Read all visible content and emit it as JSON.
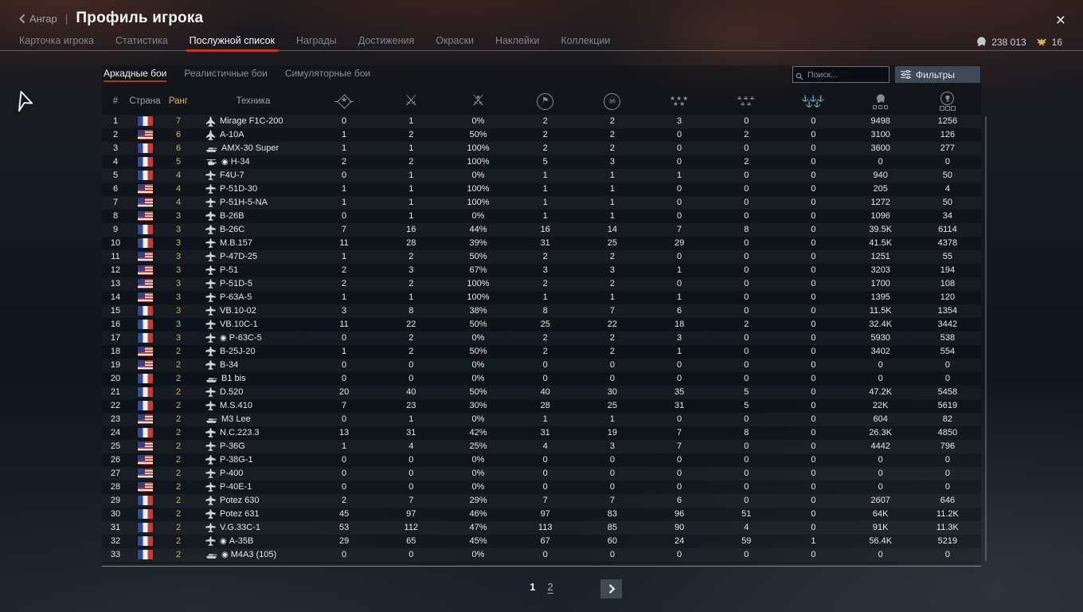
{
  "header": {
    "back_label": "Ангар",
    "separator": "|",
    "title": "Профиль игрока",
    "close_label": "×"
  },
  "currency": {
    "silver_lions": "238 013",
    "golden_eagles": "16",
    "silver_icon": "silver-lion-icon",
    "gold_icon": "golden-eagle-icon"
  },
  "tabs": [
    {
      "label": "Карточка игрока",
      "active": false
    },
    {
      "label": "Статистика",
      "active": false
    },
    {
      "label": "Послужной список",
      "active": true
    },
    {
      "label": "Награды",
      "active": false
    },
    {
      "label": "Достижения",
      "active": false
    },
    {
      "label": "Окраски",
      "active": false
    },
    {
      "label": "Наклейки",
      "active": false
    },
    {
      "label": "Коллекции",
      "active": false
    }
  ],
  "subtabs": [
    {
      "label": "Аркадные бои",
      "active": true
    },
    {
      "label": "Реалистичные бои",
      "active": false
    },
    {
      "label": "Симуляторные бои",
      "active": false
    }
  ],
  "search": {
    "placeholder": "Поиск...",
    "icon": "search-icon"
  },
  "filters": {
    "label": "Фильтры",
    "icon": "filters-icon"
  },
  "colors": {
    "accent_red": "#bf3a1f",
    "rank_gold": "#d7b455",
    "silver": "#c3c9ce",
    "eagle_gold": "#d9b44e"
  },
  "table": {
    "text_headers": [
      "#",
      "Страна",
      "Ранг",
      "Техника"
    ],
    "icon_headers": [
      "wins-icon",
      "missions-icon",
      "winrate-icon",
      "sorties-icon",
      "deaths-icon",
      "air-targets-icon",
      "ground-targets-icon",
      "naval-targets-icon",
      "silver-lions-icon",
      "research-points-icon"
    ],
    "premium_marker": "◉",
    "rows": [
      {
        "n": "1",
        "country": "fr",
        "rank": "7",
        "type": "jet",
        "premium": false,
        "name": "Mirage F1C-200",
        "stats": [
          "0",
          "1",
          "0%",
          "2",
          "2",
          "3",
          "0",
          "0",
          "9498",
          "1256"
        ]
      },
      {
        "n": "2",
        "country": "us",
        "rank": "6",
        "type": "jet",
        "premium": false,
        "name": "A-10A",
        "stats": [
          "1",
          "2",
          "50%",
          "2",
          "2",
          "0",
          "2",
          "0",
          "3100",
          "126"
        ]
      },
      {
        "n": "3",
        "country": "fr",
        "rank": "6",
        "type": "tank",
        "premium": false,
        "name": "AMX-30 Super",
        "stats": [
          "1",
          "1",
          "100%",
          "2",
          "2",
          "0",
          "0",
          "0",
          "3600",
          "277"
        ]
      },
      {
        "n": "4",
        "country": "fr",
        "rank": "5",
        "type": "heli",
        "premium": true,
        "name": "H-34",
        "stats": [
          "2",
          "2",
          "100%",
          "5",
          "3",
          "0",
          "2",
          "0",
          "0",
          "0"
        ]
      },
      {
        "n": "5",
        "country": "fr",
        "rank": "4",
        "type": "plane",
        "premium": false,
        "name": "F4U-7",
        "stats": [
          "0",
          "1",
          "0%",
          "1",
          "1",
          "1",
          "0",
          "0",
          "940",
          "50"
        ]
      },
      {
        "n": "6",
        "country": "us",
        "rank": "4",
        "type": "plane",
        "premium": false,
        "name": "P-51D-30",
        "stats": [
          "1",
          "1",
          "100%",
          "1",
          "1",
          "0",
          "0",
          "0",
          "205",
          "4"
        ]
      },
      {
        "n": "7",
        "country": "us",
        "rank": "4",
        "type": "plane",
        "premium": false,
        "name": "P-51H-5-NA",
        "stats": [
          "1",
          "1",
          "100%",
          "1",
          "1",
          "0",
          "0",
          "0",
          "1272",
          "50"
        ]
      },
      {
        "n": "8",
        "country": "us",
        "rank": "3",
        "type": "bomber",
        "premium": false,
        "name": "B-26B",
        "stats": [
          "0",
          "1",
          "0%",
          "1",
          "1",
          "0",
          "0",
          "0",
          "1096",
          "34"
        ]
      },
      {
        "n": "9",
        "country": "fr",
        "rank": "3",
        "type": "bomber",
        "premium": false,
        "name": "B-26C",
        "stats": [
          "7",
          "16",
          "44%",
          "16",
          "14",
          "7",
          "8",
          "0",
          "39.5K",
          "6114"
        ]
      },
      {
        "n": "10",
        "country": "fr",
        "rank": "3",
        "type": "plane",
        "premium": false,
        "name": "M.B.157",
        "stats": [
          "11",
          "28",
          "39%",
          "31",
          "25",
          "29",
          "0",
          "0",
          "41.5K",
          "4378"
        ]
      },
      {
        "n": "11",
        "country": "us",
        "rank": "3",
        "type": "plane",
        "premium": false,
        "name": "P-47D-25",
        "stats": [
          "1",
          "2",
          "50%",
          "2",
          "2",
          "0",
          "0",
          "0",
          "1251",
          "55"
        ]
      },
      {
        "n": "12",
        "country": "us",
        "rank": "3",
        "type": "plane",
        "premium": false,
        "name": "P-51",
        "stats": [
          "2",
          "3",
          "67%",
          "3",
          "3",
          "1",
          "0",
          "0",
          "3203",
          "194"
        ]
      },
      {
        "n": "13",
        "country": "us",
        "rank": "3",
        "type": "plane",
        "premium": false,
        "name": "P-51D-5",
        "stats": [
          "2",
          "2",
          "100%",
          "2",
          "2",
          "0",
          "0",
          "0",
          "1700",
          "108"
        ]
      },
      {
        "n": "14",
        "country": "us",
        "rank": "3",
        "type": "plane",
        "premium": false,
        "name": "P-63A-5",
        "stats": [
          "1",
          "1",
          "100%",
          "1",
          "1",
          "1",
          "0",
          "0",
          "1395",
          "120"
        ]
      },
      {
        "n": "15",
        "country": "fr",
        "rank": "3",
        "type": "plane",
        "premium": false,
        "name": "VB.10-02",
        "stats": [
          "3",
          "8",
          "38%",
          "8",
          "7",
          "6",
          "0",
          "0",
          "11.5K",
          "1354"
        ]
      },
      {
        "n": "16",
        "country": "fr",
        "rank": "3",
        "type": "plane",
        "premium": false,
        "name": "VB.10C-1",
        "stats": [
          "11",
          "22",
          "50%",
          "25",
          "22",
          "18",
          "2",
          "0",
          "32.4K",
          "3442"
        ]
      },
      {
        "n": "17",
        "country": "fr",
        "rank": "3",
        "type": "plane",
        "premium": true,
        "name": "P-63C-5",
        "stats": [
          "0",
          "2",
          "0%",
          "2",
          "2",
          "3",
          "0",
          "0",
          "5930",
          "538"
        ]
      },
      {
        "n": "18",
        "country": "us",
        "rank": "2",
        "type": "bomber",
        "premium": false,
        "name": "B-25J-20",
        "stats": [
          "1",
          "2",
          "50%",
          "2",
          "2",
          "1",
          "0",
          "0",
          "3402",
          "554"
        ]
      },
      {
        "n": "19",
        "country": "us",
        "rank": "2",
        "type": "bomber",
        "premium": false,
        "name": "B-34",
        "stats": [
          "0",
          "0",
          "0%",
          "0",
          "0",
          "0",
          "0",
          "0",
          "0",
          "0"
        ]
      },
      {
        "n": "20",
        "country": "fr",
        "rank": "2",
        "type": "tank",
        "premium": false,
        "name": "B1 bis",
        "stats": [
          "0",
          "0",
          "0%",
          "0",
          "0",
          "0",
          "0",
          "0",
          "0",
          "0"
        ]
      },
      {
        "n": "21",
        "country": "fr",
        "rank": "2",
        "type": "plane",
        "premium": false,
        "name": "D.520",
        "stats": [
          "20",
          "40",
          "50%",
          "40",
          "30",
          "35",
          "5",
          "0",
          "47.2K",
          "5458"
        ]
      },
      {
        "n": "22",
        "country": "fr",
        "rank": "2",
        "type": "plane",
        "premium": false,
        "name": "M.S.410",
        "stats": [
          "7",
          "23",
          "30%",
          "28",
          "25",
          "31",
          "5",
          "0",
          "22K",
          "5619"
        ]
      },
      {
        "n": "23",
        "country": "us",
        "rank": "2",
        "type": "tank",
        "premium": false,
        "name": "M3 Lee",
        "stats": [
          "0",
          "1",
          "0%",
          "1",
          "1",
          "0",
          "0",
          "0",
          "604",
          "82"
        ]
      },
      {
        "n": "24",
        "country": "fr",
        "rank": "2",
        "type": "bomber",
        "premium": false,
        "name": "N.C.223.3",
        "stats": [
          "13",
          "31",
          "42%",
          "31",
          "19",
          "7",
          "8",
          "0",
          "26.3K",
          "4850"
        ]
      },
      {
        "n": "25",
        "country": "us",
        "rank": "2",
        "type": "plane",
        "premium": false,
        "name": "P-36G",
        "stats": [
          "1",
          "4",
          "25%",
          "4",
          "3",
          "7",
          "0",
          "0",
          "4442",
          "796"
        ]
      },
      {
        "n": "26",
        "country": "us",
        "rank": "2",
        "type": "bomber",
        "premium": false,
        "name": "P-38G-1",
        "stats": [
          "0",
          "0",
          "0%",
          "0",
          "0",
          "0",
          "0",
          "0",
          "0",
          "0"
        ]
      },
      {
        "n": "27",
        "country": "us",
        "rank": "2",
        "type": "plane",
        "premium": false,
        "name": "P-400",
        "stats": [
          "0",
          "0",
          "0%",
          "0",
          "0",
          "0",
          "0",
          "0",
          "0",
          "0"
        ]
      },
      {
        "n": "28",
        "country": "us",
        "rank": "2",
        "type": "plane",
        "premium": false,
        "name": "P-40E-1",
        "stats": [
          "0",
          "0",
          "0%",
          "0",
          "0",
          "0",
          "0",
          "0",
          "0",
          "0"
        ]
      },
      {
        "n": "29",
        "country": "fr",
        "rank": "2",
        "type": "bomber",
        "premium": false,
        "name": "Potez 630",
        "stats": [
          "2",
          "7",
          "29%",
          "7",
          "7",
          "6",
          "0",
          "0",
          "2607",
          "646"
        ]
      },
      {
        "n": "30",
        "country": "fr",
        "rank": "2",
        "type": "bomber",
        "premium": false,
        "name": "Potez 631",
        "stats": [
          "45",
          "97",
          "46%",
          "97",
          "83",
          "96",
          "51",
          "0",
          "64K",
          "11.2K"
        ]
      },
      {
        "n": "31",
        "country": "fr",
        "rank": "2",
        "type": "plane",
        "premium": false,
        "name": "V.G.33C-1",
        "stats": [
          "53",
          "112",
          "47%",
          "113",
          "85",
          "90",
          "4",
          "0",
          "91K",
          "11.3K"
        ]
      },
      {
        "n": "32",
        "country": "fr",
        "rank": "2",
        "type": "plane",
        "premium": true,
        "name": "A-35B",
        "stats": [
          "29",
          "65",
          "45%",
          "67",
          "60",
          "24",
          "59",
          "1",
          "56.4K",
          "5219"
        ]
      },
      {
        "n": "33",
        "country": "fr",
        "rank": "2",
        "type": "tank",
        "premium": true,
        "name": "M4A3 (105)",
        "stats": [
          "0",
          "0",
          "0%",
          "0",
          "0",
          "0",
          "0",
          "0",
          "0",
          "0"
        ]
      }
    ]
  },
  "pagination": {
    "pages": [
      "1",
      "2"
    ],
    "current": "1",
    "next_icon": "next-page-icon"
  }
}
